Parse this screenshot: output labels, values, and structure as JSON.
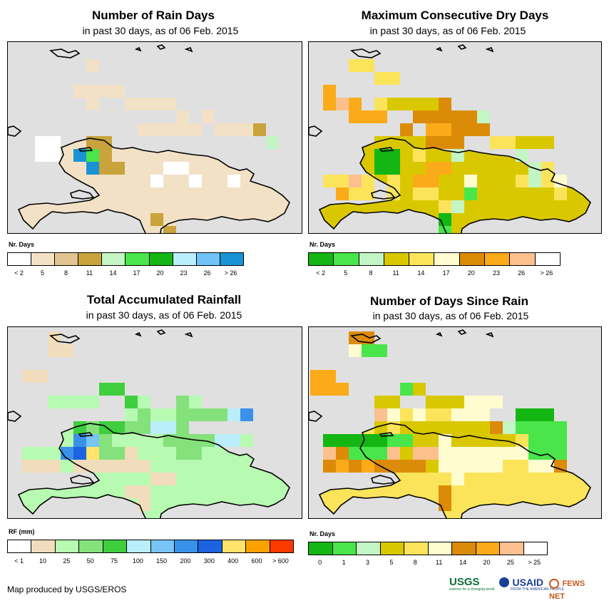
{
  "panels": [
    {
      "title": "Number of Rain Days",
      "subtitle": "in past 30 days, as of 06 Feb. 2015",
      "legend_title": "Nr. Days",
      "legend_colors": [
        "#ffffff",
        "#f3e1c6",
        "#e1c491",
        "#c9a33b",
        "#c4f5c4",
        "#49e54a",
        "#14b614",
        "#b9eefa",
        "#6fc3f6",
        "#1a93d5"
      ],
      "legend_labels": [
        "< 2",
        "5",
        "8",
        "11",
        "14",
        "17",
        "20",
        "23",
        "26",
        "> 26"
      ],
      "base_color": "#f3e1c6"
    },
    {
      "title": "Maximum Consecutive Dry Days",
      "subtitle": "in past 30 days, as of 06 Feb. 2015",
      "legend_title": "Nr. Days",
      "legend_colors": [
        "#14b614",
        "#49e54a",
        "#c4f5c4",
        "#d9c800",
        "#fbe45a",
        "#fffccf",
        "#dc8b08",
        "#fbaa19",
        "#fbc08e",
        "#ffffff"
      ],
      "legend_labels": [
        "< 2",
        "5",
        "8",
        "11",
        "14",
        "17",
        "20",
        "23",
        "26",
        "> 26"
      ],
      "base_color": "#d9c800"
    },
    {
      "title": "Total Accumulated Rainfall",
      "subtitle": "in past 30 days, as of 06 Feb. 2015",
      "legend_title": "RF (mm)",
      "legend_colors": [
        "#ffffff",
        "#f1dcbb",
        "#b7fab1",
        "#85e17b",
        "#3fce3e",
        "#b9eefa",
        "#77c4f5",
        "#3a91ea",
        "#1d62e0",
        "#ffe36b",
        "#fba100",
        "#fb3a00"
      ],
      "legend_labels": [
        "< 1",
        "10",
        "25",
        "50",
        "75",
        "100",
        "150",
        "200",
        "300",
        "400",
        "600",
        "> 600"
      ],
      "base_color": "#b7fab1"
    },
    {
      "title": "Number of Days Since Rain",
      "subtitle": "in past 30 days, as of 06 Feb. 2015",
      "legend_title": "Nr. Days",
      "legend_colors": [
        "#14b614",
        "#49e54a",
        "#c4f5c4",
        "#d9c800",
        "#fbe45a",
        "#fffccf",
        "#dc8b08",
        "#fbaa19",
        "#fbc08e",
        "#ffffff"
      ],
      "legend_labels": [
        "0",
        "1",
        "3",
        "5",
        "8",
        "11",
        "14",
        "20",
        "25",
        "> 25"
      ],
      "base_color": "#fbe45a"
    }
  ],
  "footer": "Map produced by USGS/EROS",
  "logos": {
    "usgs": "USGS",
    "usgs_tagline": "science for a changing world",
    "usaid": "USAID",
    "usaid_tagline": "FROM THE AMERICAN PEOPLE",
    "fews": "FEWS NET"
  }
}
